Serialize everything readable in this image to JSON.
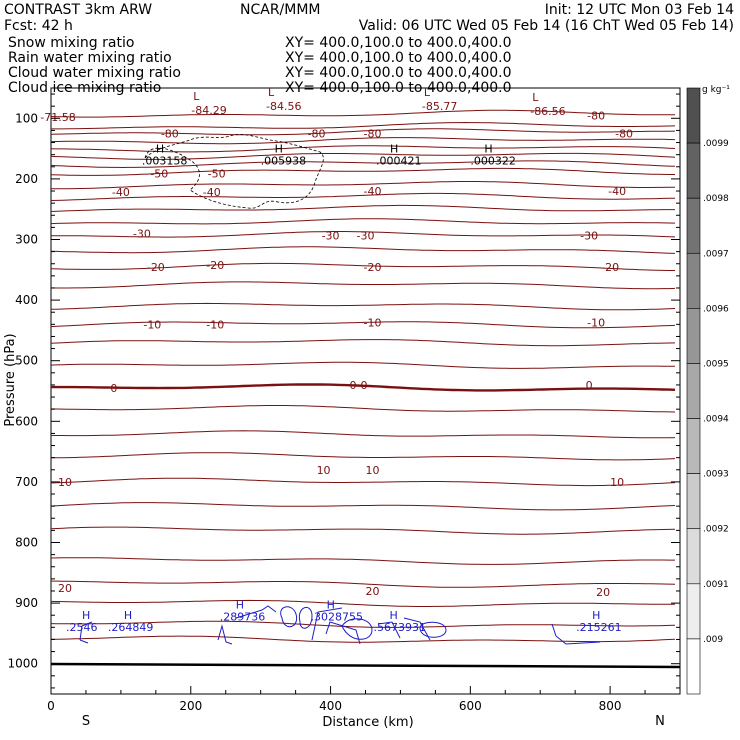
{
  "header": {
    "left_line1": "CONTRAST  3km ARW",
    "left_line2": "Fcst:   42 h",
    "center_line1": "NCAR/MMM",
    "right_line1": "Init: 12 UTC Mon 03 Feb 14",
    "right_line2": "Valid: 06 UTC Wed 05 Feb 14 (16 ChT Wed 05 Feb 14)"
  },
  "fields": [
    {
      "name": "Snow mixing ratio",
      "xy": "XY= 400.0,100.0 to 400.0,400.0",
      "color": "#000000"
    },
    {
      "name": "Rain water mixing ratio",
      "xy": "XY= 400.0,100.0 to 400.0,400.0",
      "color": "#e8201a"
    },
    {
      "name": "Cloud water mixing ratio",
      "xy": "XY= 400.0,100.0 to 400.0,400.0",
      "color": "#1d1dc8"
    },
    {
      "name": "Cloud ice mixing ratio",
      "xy": "XY= 400.0,100.0 to 400.0,400.0",
      "color": "#000000"
    }
  ],
  "colors": {
    "temperature": "#7a1010",
    "cloud_water": "#1d1dc8",
    "rain": "#c82060",
    "snow": "#000000"
  },
  "chart_data": {
    "type": "contour",
    "xlabel": "Distance (km)",
    "ylabel": "Pressure (hPa)",
    "xlim": [
      0,
      900
    ],
    "ylim": [
      1050,
      50
    ],
    "x_ticks": [
      0,
      200,
      400,
      600,
      800
    ],
    "y_ticks": [
      100,
      200,
      300,
      400,
      500,
      600,
      700,
      800,
      900,
      1000
    ],
    "x_end_labels": {
      "left": "S",
      "right": "N"
    },
    "colorbar": {
      "unit": "g kg⁻¹",
      "labels": [
        ".0099",
        ".0098",
        ".0097",
        ".0096",
        ".0095",
        ".0094",
        ".0093",
        ".0092",
        ".0091",
        ".009"
      ]
    },
    "temperature_contours": [
      {
        "p": 93,
        "label": "-80"
      },
      {
        "p": 113,
        "label": "-80"
      },
      {
        "p": 123,
        "label": "-80"
      },
      {
        "p": 137,
        "label": ""
      },
      {
        "p": 150,
        "label": ""
      },
      {
        "p": 162,
        "label": ""
      },
      {
        "p": 175,
        "label": ""
      },
      {
        "p": 188,
        "label": "-50"
      },
      {
        "p": 210,
        "label": "-40"
      },
      {
        "p": 230,
        "label": ""
      },
      {
        "p": 250,
        "label": ""
      },
      {
        "p": 272,
        "label": ""
      },
      {
        "p": 293,
        "label": "-30"
      },
      {
        "p": 318,
        "label": ""
      },
      {
        "p": 345,
        "label": "-20"
      },
      {
        "p": 375,
        "label": ""
      },
      {
        "p": 410,
        "label": ""
      },
      {
        "p": 440,
        "label": "-10"
      },
      {
        "p": 470,
        "label": ""
      },
      {
        "p": 508,
        "label": ""
      },
      {
        "p": 545,
        "label": "0"
      },
      {
        "p": 580,
        "label": ""
      },
      {
        "p": 622,
        "label": ""
      },
      {
        "p": 658,
        "label": "10"
      },
      {
        "p": 700,
        "label": ""
      },
      {
        "p": 740,
        "label": ""
      },
      {
        "p": 780,
        "label": ""
      },
      {
        "p": 830,
        "label": ""
      },
      {
        "p": 868,
        "label": "20"
      },
      {
        "p": 900,
        "label": ""
      },
      {
        "p": 935,
        "label": ""
      },
      {
        "p": 960,
        "label": ""
      }
    ],
    "temp_labels": [
      {
        "x": 10,
        "p": 98,
        "text": "-71.58"
      },
      {
        "x": 780,
        "p": 95,
        "text": "-80"
      },
      {
        "x": 170,
        "p": 125,
        "text": "-80"
      },
      {
        "x": 380,
        "p": 125,
        "text": "-80"
      },
      {
        "x": 460,
        "p": 125,
        "text": "-80"
      },
      {
        "x": 820,
        "p": 125,
        "text": "-80"
      },
      {
        "x": 155,
        "p": 191,
        "text": "-50"
      },
      {
        "x": 237,
        "p": 191,
        "text": "-50"
      },
      {
        "x": 100,
        "p": 222,
        "text": "-40"
      },
      {
        "x": 230,
        "p": 222,
        "text": "-40"
      },
      {
        "x": 460,
        "p": 220,
        "text": "-40"
      },
      {
        "x": 810,
        "p": 220,
        "text": "-40"
      },
      {
        "x": 130,
        "p": 290,
        "text": "-30"
      },
      {
        "x": 400,
        "p": 293,
        "text": "-30"
      },
      {
        "x": 450,
        "p": 293,
        "text": "-30"
      },
      {
        "x": 770,
        "p": 293,
        "text": "-30"
      },
      {
        "x": 150,
        "p": 345,
        "text": "-20"
      },
      {
        "x": 235,
        "p": 342,
        "text": "-20"
      },
      {
        "x": 460,
        "p": 345,
        "text": "-20"
      },
      {
        "x": 800,
        "p": 345,
        "text": "-20"
      },
      {
        "x": 145,
        "p": 440,
        "text": "-10"
      },
      {
        "x": 235,
        "p": 440,
        "text": "-10"
      },
      {
        "x": 460,
        "p": 437,
        "text": "-10"
      },
      {
        "x": 780,
        "p": 437,
        "text": "-10"
      },
      {
        "x": 90,
        "p": 545,
        "text": "0"
      },
      {
        "x": 440,
        "p": 540,
        "text": "0-0"
      },
      {
        "x": 770,
        "p": 540,
        "text": "0"
      },
      {
        "x": 20,
        "p": 700,
        "text": "10"
      },
      {
        "x": 390,
        "p": 680,
        "text": "10"
      },
      {
        "x": 460,
        "p": 680,
        "text": "10"
      },
      {
        "x": 810,
        "p": 700,
        "text": "10"
      },
      {
        "x": 20,
        "p": 875,
        "text": "20"
      },
      {
        "x": 460,
        "p": 880,
        "text": "20"
      },
      {
        "x": 790,
        "p": 882,
        "text": "20"
      }
    ],
    "extrema": [
      {
        "x": 215,
        "p": 86,
        "mark": "L",
        "value": "-84.29"
      },
      {
        "x": 322,
        "p": 80,
        "mark": "L",
        "value": "-84.56"
      },
      {
        "x": 545,
        "p": 80,
        "mark": "L",
        "value": "-85.77"
      },
      {
        "x": 700,
        "p": 88,
        "mark": "L",
        "value": "-86.56"
      }
    ],
    "snow_maxima": [
      {
        "x": 130,
        "p": 173,
        "value": ".003158"
      },
      {
        "x": 300,
        "p": 173,
        "value": ".005938"
      },
      {
        "x": 465,
        "p": 173,
        "value": ".000421"
      },
      {
        "x": 600,
        "p": 173,
        "value": ".000322"
      }
    ],
    "cloud_maxima": [
      {
        "x": 30,
        "p": 943,
        "value": ".2546"
      },
      {
        "x": 90,
        "p": 943,
        "value": ".264849"
      },
      {
        "x": 250,
        "p": 925,
        "value": ".289736"
      },
      {
        "x": 380,
        "p": 925,
        "value": ".3028755"
      },
      {
        "x": 470,
        "p": 943,
        "value": ".5673931"
      },
      {
        "x": 760,
        "p": 943,
        "value": ".215261"
      }
    ]
  }
}
